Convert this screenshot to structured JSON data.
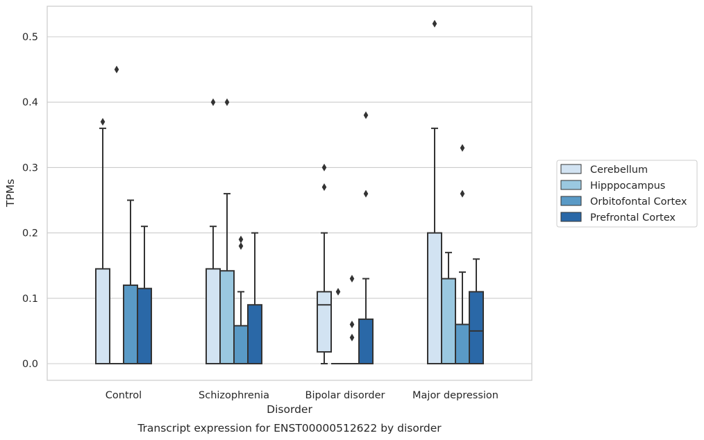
{
  "chart_data": {
    "type": "box",
    "title": "",
    "caption": "Transcript expression for ENST00000512622 by disorder",
    "xlabel": "Disorder",
    "ylabel": "TPMs",
    "ylim": [
      -0.025,
      0.548
    ],
    "yticks": [
      0.0,
      0.1,
      0.2,
      0.3,
      0.4,
      0.5
    ],
    "ytick_labels": [
      "0.0",
      "0.1",
      "0.2",
      "0.3",
      "0.4",
      "0.5"
    ],
    "grid": "horizontal",
    "legend_position": "right",
    "categories": [
      "Control",
      "Schizophrenia",
      "Bipolar disorder",
      "Major depression"
    ],
    "series": [
      {
        "name": "Cerebellum",
        "color": "#d2e3f2",
        "boxes": [
          {
            "q1": 0.0,
            "median": 0.0,
            "q3": 0.145,
            "whisker_low": 0.0,
            "whisker_high": 0.36,
            "outliers": [
              0.37
            ]
          },
          {
            "q1": 0.0,
            "median": 0.0,
            "q3": 0.145,
            "whisker_low": 0.0,
            "whisker_high": 0.21,
            "outliers": [
              0.4
            ]
          },
          {
            "q1": 0.018,
            "median": 0.09,
            "q3": 0.11,
            "whisker_low": 0.0,
            "whisker_high": 0.2,
            "outliers": [
              0.27,
              0.3
            ]
          },
          {
            "q1": 0.0,
            "median": 0.0,
            "q3": 0.2,
            "whisker_low": 0.0,
            "whisker_high": 0.36,
            "outliers": [
              0.52
            ]
          }
        ]
      },
      {
        "name": "Hipppocampus",
        "color": "#9ac8e0",
        "boxes": [
          {
            "q1": 0.0,
            "median": 0.0,
            "q3": 0.0,
            "whisker_low": 0.0,
            "whisker_high": 0.0,
            "outliers": [
              0.45
            ]
          },
          {
            "q1": 0.0,
            "median": 0.0,
            "q3": 0.142,
            "whisker_low": 0.0,
            "whisker_high": 0.26,
            "outliers": [
              0.4
            ]
          },
          {
            "q1": 0.0,
            "median": 0.0,
            "q3": 0.0,
            "whisker_low": 0.0,
            "whisker_high": 0.0,
            "outliers": [
              0.11
            ]
          },
          {
            "q1": 0.0,
            "median": 0.0,
            "q3": 0.13,
            "whisker_low": 0.0,
            "whisker_high": 0.17,
            "outliers": []
          }
        ]
      },
      {
        "name": "Orbitofontal Cortex",
        "color": "#5a9ac6",
        "boxes": [
          {
            "q1": 0.0,
            "median": 0.0,
            "q3": 0.12,
            "whisker_low": 0.0,
            "whisker_high": 0.25,
            "outliers": []
          },
          {
            "q1": 0.0,
            "median": 0.0,
            "q3": 0.058,
            "whisker_low": 0.0,
            "whisker_high": 0.11,
            "outliers": [
              0.18,
              0.19
            ]
          },
          {
            "q1": 0.0,
            "median": 0.0,
            "q3": 0.0,
            "whisker_low": 0.0,
            "whisker_high": 0.0,
            "outliers": [
              0.04,
              0.06,
              0.13
            ]
          },
          {
            "q1": 0.0,
            "median": 0.0,
            "q3": 0.06,
            "whisker_low": 0.0,
            "whisker_high": 0.14,
            "outliers": [
              0.26,
              0.33
            ]
          }
        ]
      },
      {
        "name": "Prefrontal Cortex",
        "color": "#2a68a7",
        "boxes": [
          {
            "q1": 0.0,
            "median": 0.0,
            "q3": 0.115,
            "whisker_low": 0.0,
            "whisker_high": 0.21,
            "outliers": []
          },
          {
            "q1": 0.0,
            "median": 0.0,
            "q3": 0.09,
            "whisker_low": 0.0,
            "whisker_high": 0.2,
            "outliers": []
          },
          {
            "q1": 0.0,
            "median": 0.0,
            "q3": 0.068,
            "whisker_low": 0.0,
            "whisker_high": 0.13,
            "outliers": [
              0.26,
              0.38
            ]
          },
          {
            "q1": 0.0,
            "median": 0.05,
            "q3": 0.11,
            "whisker_low": 0.0,
            "whisker_high": 0.16,
            "outliers": []
          }
        ]
      }
    ]
  }
}
